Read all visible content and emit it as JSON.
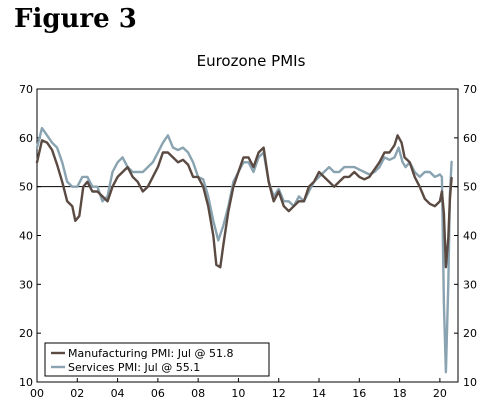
{
  "figure_label": "Figure 3",
  "colors": {
    "manufacturing": "#5a4a42",
    "services": "#8aa3b1",
    "axis": "#000000"
  },
  "chart_data": {
    "type": "line",
    "title": "Eurozone PMIs",
    "xlabel": "",
    "ylabel": "",
    "xlim": [
      2000,
      2020.9
    ],
    "ylim": [
      10,
      70
    ],
    "yticks": [
      10,
      20,
      30,
      40,
      50,
      60,
      70
    ],
    "yticks_right": [
      10,
      20,
      30,
      40,
      50,
      60,
      70
    ],
    "xticks": [
      {
        "value": 2000,
        "label": "00"
      },
      {
        "value": 2002,
        "label": "02"
      },
      {
        "value": 2004,
        "label": "04"
      },
      {
        "value": 2006,
        "label": "06"
      },
      {
        "value": 2008,
        "label": "08"
      },
      {
        "value": 2010,
        "label": "10"
      },
      {
        "value": 2012,
        "label": "12"
      },
      {
        "value": 2014,
        "label": "14"
      },
      {
        "value": 2016,
        "label": "16"
      },
      {
        "value": 2018,
        "label": "18"
      },
      {
        "value": 2020,
        "label": "20"
      }
    ],
    "reference_line": 50,
    "grid": false,
    "legend_position": "bottom-left",
    "series": [
      {
        "name": "Manufacturing PMI: Jul @ 51.8",
        "color": "#5a4a42",
        "points": [
          [
            2000,
            55
          ],
          [
            2000.25,
            59.5
          ],
          [
            2000.5,
            59
          ],
          [
            2000.75,
            57.5
          ],
          [
            2001,
            54.5
          ],
          [
            2001.25,
            51
          ],
          [
            2001.5,
            47
          ],
          [
            2001.75,
            46
          ],
          [
            2001.9,
            43
          ],
          [
            2002.1,
            44
          ],
          [
            2002.3,
            50
          ],
          [
            2002.5,
            51
          ],
          [
            2002.75,
            49
          ],
          [
            2003,
            49
          ],
          [
            2003.25,
            48
          ],
          [
            2003.5,
            47
          ],
          [
            2003.75,
            50
          ],
          [
            2004,
            52
          ],
          [
            2004.25,
            53
          ],
          [
            2004.5,
            54
          ],
          [
            2004.75,
            52
          ],
          [
            2005,
            51
          ],
          [
            2005.25,
            49
          ],
          [
            2005.5,
            50
          ],
          [
            2005.75,
            52
          ],
          [
            2006,
            54
          ],
          [
            2006.25,
            57
          ],
          [
            2006.5,
            57
          ],
          [
            2006.75,
            56
          ],
          [
            2007,
            55
          ],
          [
            2007.25,
            55.5
          ],
          [
            2007.5,
            54.5
          ],
          [
            2007.75,
            52
          ],
          [
            2008,
            52
          ],
          [
            2008.25,
            50
          ],
          [
            2008.5,
            46
          ],
          [
            2008.75,
            40
          ],
          [
            2008.9,
            34
          ],
          [
            2009.1,
            33.5
          ],
          [
            2009.25,
            38
          ],
          [
            2009.5,
            45
          ],
          [
            2009.75,
            50
          ],
          [
            2010,
            53
          ],
          [
            2010.25,
            56
          ],
          [
            2010.5,
            56
          ],
          [
            2010.75,
            54
          ],
          [
            2011,
            57
          ],
          [
            2011.25,
            58
          ],
          [
            2011.5,
            51
          ],
          [
            2011.75,
            47
          ],
          [
            2012,
            49
          ],
          [
            2012.25,
            46
          ],
          [
            2012.5,
            45
          ],
          [
            2012.75,
            46
          ],
          [
            2013,
            47
          ],
          [
            2013.25,
            47
          ],
          [
            2013.5,
            50
          ],
          [
            2013.75,
            51
          ],
          [
            2014,
            53
          ],
          [
            2014.25,
            52
          ],
          [
            2014.5,
            51
          ],
          [
            2014.75,
            50
          ],
          [
            2015,
            51
          ],
          [
            2015.25,
            52
          ],
          [
            2015.5,
            52
          ],
          [
            2015.75,
            53
          ],
          [
            2016,
            52
          ],
          [
            2016.25,
            51.5
          ],
          [
            2016.5,
            52
          ],
          [
            2016.75,
            53.5
          ],
          [
            2017,
            55
          ],
          [
            2017.25,
            57
          ],
          [
            2017.5,
            57
          ],
          [
            2017.75,
            58.5
          ],
          [
            2017.9,
            60.5
          ],
          [
            2018.1,
            59
          ],
          [
            2018.25,
            56
          ],
          [
            2018.5,
            55
          ],
          [
            2018.75,
            52
          ],
          [
            2019,
            50
          ],
          [
            2019.25,
            47.5
          ],
          [
            2019.5,
            46.5
          ],
          [
            2019.75,
            46
          ],
          [
            2020,
            47
          ],
          [
            2020.1,
            49
          ],
          [
            2020.2,
            44.5
          ],
          [
            2020.3,
            33.5
          ],
          [
            2020.42,
            39.5
          ],
          [
            2020.5,
            47.5
          ],
          [
            2020.58,
            51.8
          ]
        ]
      },
      {
        "name": "Services PMI: Jul @ 55.1",
        "color": "#8aa3b1",
        "points": [
          [
            2000,
            58
          ],
          [
            2000.25,
            62
          ],
          [
            2000.5,
            60.5
          ],
          [
            2000.75,
            59
          ],
          [
            2001,
            58
          ],
          [
            2001.25,
            55
          ],
          [
            2001.5,
            51
          ],
          [
            2001.75,
            50
          ],
          [
            2002,
            50
          ],
          [
            2002.25,
            52
          ],
          [
            2002.5,
            52
          ],
          [
            2002.75,
            50
          ],
          [
            2003,
            50
          ],
          [
            2003.25,
            47
          ],
          [
            2003.5,
            48
          ],
          [
            2003.75,
            53
          ],
          [
            2004,
            55
          ],
          [
            2004.25,
            56
          ],
          [
            2004.5,
            54
          ],
          [
            2004.75,
            53
          ],
          [
            2005,
            53
          ],
          [
            2005.25,
            53
          ],
          [
            2005.5,
            54
          ],
          [
            2005.75,
            55
          ],
          [
            2006,
            57
          ],
          [
            2006.25,
            59
          ],
          [
            2006.5,
            60.5
          ],
          [
            2006.75,
            58
          ],
          [
            2007,
            57.5
          ],
          [
            2007.25,
            58
          ],
          [
            2007.5,
            57
          ],
          [
            2007.75,
            55
          ],
          [
            2008,
            52
          ],
          [
            2008.25,
            51.5
          ],
          [
            2008.5,
            48
          ],
          [
            2008.75,
            43
          ],
          [
            2009,
            39
          ],
          [
            2009.25,
            42
          ],
          [
            2009.5,
            46
          ],
          [
            2009.75,
            51
          ],
          [
            2010,
            53
          ],
          [
            2010.25,
            55
          ],
          [
            2010.5,
            55
          ],
          [
            2010.75,
            53
          ],
          [
            2011,
            56
          ],
          [
            2011.25,
            57
          ],
          [
            2011.5,
            51
          ],
          [
            2011.75,
            48
          ],
          [
            2012,
            49.5
          ],
          [
            2012.25,
            47
          ],
          [
            2012.5,
            47
          ],
          [
            2012.75,
            46
          ],
          [
            2013,
            48
          ],
          [
            2013.25,
            47
          ],
          [
            2013.5,
            49
          ],
          [
            2013.75,
            51
          ],
          [
            2014,
            52
          ],
          [
            2014.25,
            53
          ],
          [
            2014.5,
            54
          ],
          [
            2014.75,
            53
          ],
          [
            2015,
            53
          ],
          [
            2015.25,
            54
          ],
          [
            2015.5,
            54
          ],
          [
            2015.75,
            54
          ],
          [
            2016,
            53.5
          ],
          [
            2016.25,
            53
          ],
          [
            2016.5,
            52.5
          ],
          [
            2016.75,
            53
          ],
          [
            2017,
            54
          ],
          [
            2017.25,
            56
          ],
          [
            2017.5,
            55.5
          ],
          [
            2017.75,
            56
          ],
          [
            2017.95,
            58
          ],
          [
            2018.15,
            55
          ],
          [
            2018.3,
            54
          ],
          [
            2018.5,
            55
          ],
          [
            2018.75,
            53
          ],
          [
            2019,
            52
          ],
          [
            2019.25,
            53
          ],
          [
            2019.5,
            53
          ],
          [
            2019.75,
            52
          ],
          [
            2020,
            52.5
          ],
          [
            2020.1,
            52
          ],
          [
            2020.2,
            26
          ],
          [
            2020.3,
            12
          ],
          [
            2020.42,
            30
          ],
          [
            2020.5,
            48.5
          ],
          [
            2020.58,
            55.1
          ]
        ]
      }
    ]
  }
}
